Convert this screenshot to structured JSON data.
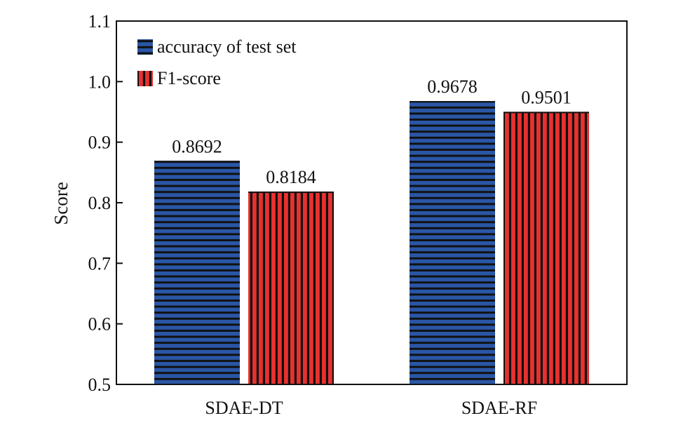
{
  "chart_data": {
    "type": "bar",
    "title": "",
    "xlabel": "",
    "ylabel": "Score",
    "ylim": [
      0.5,
      1.1
    ],
    "yticks": [
      "0.5",
      "0.6",
      "0.7",
      "0.8",
      "0.9",
      "1.0",
      "1.1"
    ],
    "categories": [
      "SDAE-DT",
      "SDAE-RF"
    ],
    "series": [
      {
        "name": "accuracy of test set",
        "values": [
          0.8692,
          0.9678
        ],
        "labels": [
          "0.8692",
          "0.9678"
        ],
        "color": "#2a56a6",
        "stripe_color": "#111111",
        "pattern": "horizontal-stripes"
      },
      {
        "name": "F1-score",
        "values": [
          0.8184,
          0.9501
        ],
        "labels": [
          "0.8184",
          "0.9501"
        ],
        "color": "#e8312f",
        "stripe_color": "#111111",
        "pattern": "vertical-stripes"
      }
    ],
    "legend_position": "top-left",
    "grid": false
  }
}
